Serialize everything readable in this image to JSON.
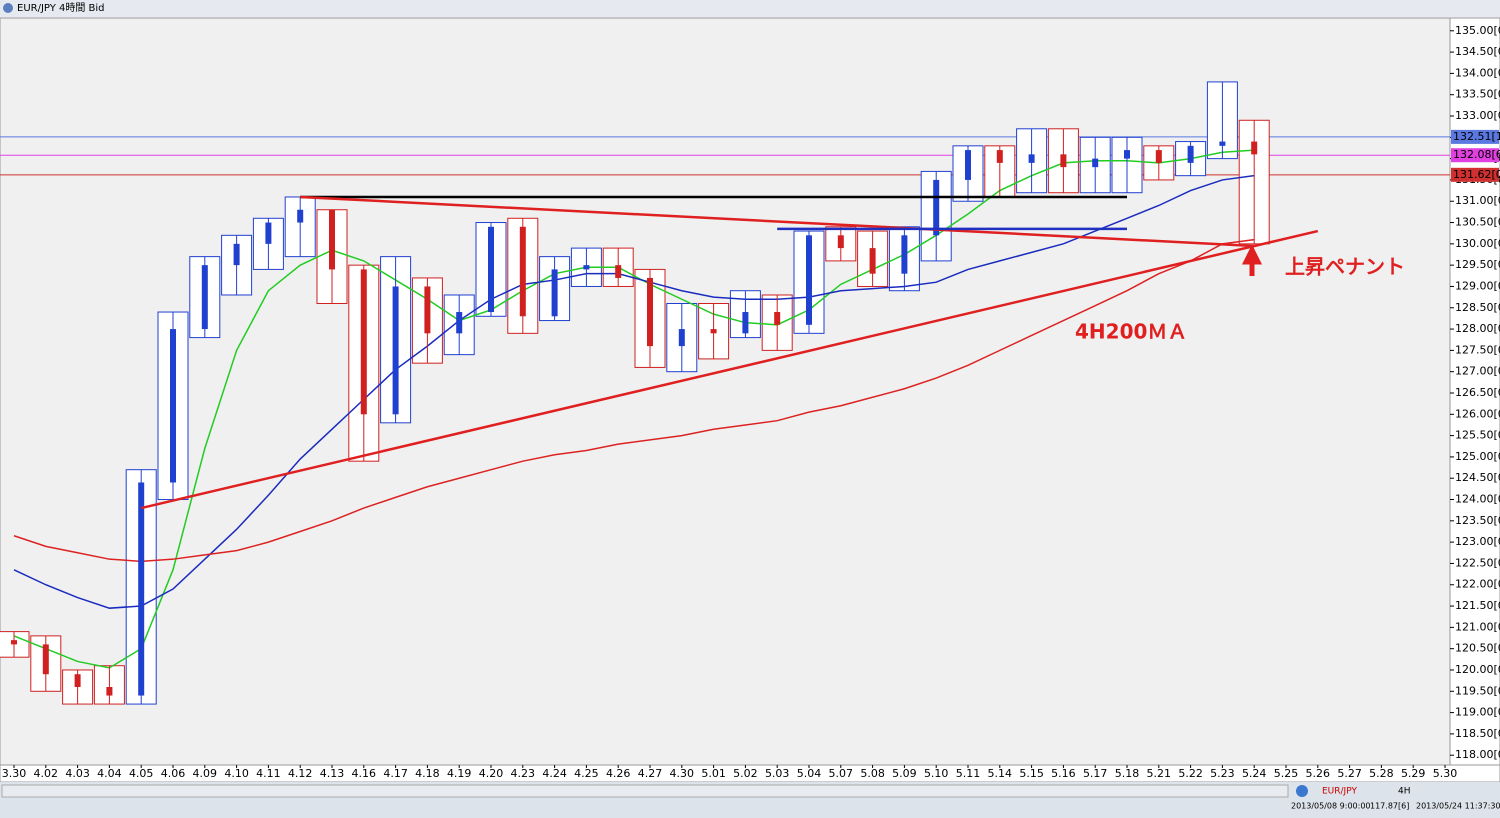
{
  "window_title": "EUR/JPY 4時間 Bid",
  "chart_data": {
    "type": "candlestick",
    "categories": [
      "3.30",
      "4.02",
      "4.03",
      "4.04",
      "4.05",
      "4.06",
      "4.09",
      "4.10",
      "4.11",
      "4.12",
      "4.13",
      "4.16",
      "4.17",
      "4.18",
      "4.19",
      "4.20",
      "4.23",
      "4.24",
      "4.25",
      "4.26",
      "4.27",
      "4.30",
      "5.01",
      "5.02",
      "5.03",
      "5.04",
      "5.07",
      "5.08",
      "5.09",
      "5.10",
      "5.11",
      "5.14",
      "5.15",
      "5.16",
      "5.17",
      "5.18",
      "5.21",
      "5.22",
      "5.23",
      "5.24",
      "5.25",
      "5.26",
      "5.27",
      "5.28",
      "5.29",
      "5.30"
    ],
    "open": [
      120.7,
      120.6,
      119.9,
      119.6,
      119.4,
      124.4,
      128.0,
      129.5,
      130.0,
      130.5,
      130.8,
      129.4,
      126.0,
      129.0,
      127.9,
      128.4,
      130.4,
      128.3,
      129.4,
      129.5,
      129.2,
      127.6,
      128.0,
      127.9,
      128.4,
      128.1,
      130.2,
      129.9,
      129.3,
      130.2,
      131.5,
      132.2,
      131.9,
      132.1,
      131.8,
      132.0,
      132.2,
      131.9,
      132.3,
      132.4,
      null,
      null,
      null,
      null,
      null,
      null
    ],
    "high": [
      120.9,
      120.8,
      120.0,
      120.1,
      124.7,
      128.4,
      129.7,
      130.2,
      130.6,
      131.1,
      130.8,
      129.5,
      129.7,
      129.2,
      128.8,
      130.5,
      130.6,
      129.7,
      129.9,
      129.9,
      129.4,
      128.6,
      128.6,
      128.9,
      128.8,
      130.3,
      130.4,
      130.3,
      130.4,
      131.7,
      132.3,
      132.3,
      132.7,
      132.7,
      132.5,
      132.5,
      132.3,
      132.4,
      133.8,
      132.9,
      null,
      null,
      null,
      null,
      null,
      null
    ],
    "low": [
      120.3,
      119.5,
      119.2,
      119.2,
      119.2,
      124.0,
      127.8,
      128.8,
      129.4,
      129.7,
      128.6,
      124.9,
      125.8,
      127.2,
      127.4,
      128.3,
      127.9,
      128.2,
      129.0,
      129.0,
      127.1,
      127.0,
      127.3,
      127.8,
      127.5,
      127.9,
      129.6,
      129.0,
      128.9,
      129.6,
      131.0,
      131.1,
      131.2,
      131.2,
      131.2,
      131.2,
      131.5,
      131.6,
      132.0,
      130.0,
      null,
      null,
      null,
      null,
      null,
      null
    ],
    "close": [
      120.6,
      119.9,
      119.6,
      119.4,
      124.4,
      128.0,
      129.5,
      130.0,
      130.5,
      130.8,
      129.4,
      126.0,
      129.0,
      127.9,
      128.4,
      130.4,
      128.3,
      129.4,
      129.5,
      129.2,
      127.6,
      128.0,
      127.9,
      128.4,
      128.1,
      130.2,
      129.9,
      129.3,
      130.2,
      131.5,
      132.2,
      131.9,
      132.1,
      131.8,
      132.0,
      132.2,
      131.9,
      132.3,
      132.4,
      132.1,
      null,
      null,
      null,
      null,
      null,
      null
    ],
    "up_color": "#2040d0",
    "down_color": "#d02020",
    "series": [
      {
        "color": "#22cc22",
        "values": [
          120.8,
          120.5,
          120.2,
          120.05,
          120.5,
          122.35,
          125.2,
          127.5,
          128.9,
          129.5,
          129.85,
          129.6,
          129.15,
          128.7,
          128.2,
          128.45,
          128.9,
          129.3,
          129.45,
          129.45,
          129.05,
          128.7,
          128.35,
          128.15,
          128.1,
          128.45,
          129.05,
          129.4,
          129.75,
          130.2,
          130.7,
          131.25,
          131.6,
          131.9,
          131.95,
          131.95,
          131.9,
          132.0,
          132.15,
          132.2,
          null,
          null,
          null,
          null,
          null,
          null
        ]
      },
      {
        "color": "#1a2bbf",
        "values": [
          122.35,
          122.0,
          121.7,
          121.45,
          121.5,
          121.9,
          122.6,
          123.3,
          124.1,
          124.95,
          125.65,
          126.35,
          127.05,
          127.6,
          128.2,
          128.7,
          129.05,
          129.15,
          129.3,
          129.3,
          129.1,
          128.9,
          128.75,
          128.7,
          128.7,
          128.75,
          128.9,
          128.95,
          129.0,
          129.1,
          129.4,
          129.6,
          129.8,
          130.0,
          130.3,
          130.6,
          130.9,
          131.25,
          131.5,
          131.6,
          null,
          null,
          null,
          null,
          null,
          null
        ]
      },
      {
        "color": "#dd2222",
        "values": [
          123.15,
          122.9,
          122.75,
          122.6,
          122.55,
          122.6,
          122.7,
          122.8,
          123.0,
          123.25,
          123.5,
          123.8,
          124.05,
          124.3,
          124.5,
          124.7,
          124.9,
          125.05,
          125.15,
          125.3,
          125.4,
          125.5,
          125.65,
          125.75,
          125.85,
          126.05,
          126.2,
          126.4,
          126.6,
          126.85,
          127.15,
          127.5,
          127.85,
          128.2,
          128.55,
          128.9,
          129.3,
          129.6,
          130.0,
          130.1,
          null,
          null,
          null,
          null,
          null,
          null
        ]
      }
    ],
    "trendlines": [
      {
        "color": "#000000",
        "x": [
          "4.12",
          "5.18"
        ],
        "values": [
          131.1,
          131.1
        ]
      },
      {
        "color": "#e02020",
        "x": [
          "4.12",
          "5.24"
        ],
        "values": [
          131.1,
          129.95
        ]
      },
      {
        "color": "#e02020",
        "x": [
          "4.05",
          "5.26"
        ],
        "values": [
          123.8,
          130.3
        ]
      },
      {
        "color": "#2030c0",
        "x": [
          "5.03",
          "5.18"
        ],
        "values": [
          130.35,
          130.35
        ]
      }
    ],
    "price_lines": [
      {
        "color": "#5a78e0",
        "tick": {
          "value": 132.51,
          "label": "132.51[1"
        }
      },
      {
        "color": "#e040e0",
        "tick": {
          "value": 132.08,
          "label": "132.08[6"
        }
      },
      {
        "color": "#d03030",
        "tick": {
          "value": 131.62,
          "label": "131.62[0"
        }
      }
    ],
    "annotations": [
      "上昇ペナント",
      "4H200ＭＡ"
    ],
    "ylim": [
      117.77,
      135.3
    ],
    "yticks": [
      {
        "value": 118,
        "label": "118.00[0"
      },
      {
        "value": 118.5,
        "label": "118.50[0"
      },
      {
        "value": 119,
        "label": "119.00[0"
      },
      {
        "value": 119.5,
        "label": "119.50[0"
      },
      {
        "value": 120,
        "label": "120.00[0"
      },
      {
        "value": 120.5,
        "label": "120.50[0"
      },
      {
        "value": 121,
        "label": "121.00[0"
      },
      {
        "value": 121.5,
        "label": "121.50[0"
      },
      {
        "value": 122,
        "label": "122.00[0"
      },
      {
        "value": 122.5,
        "label": "122.50[0"
      },
      {
        "value": 123,
        "label": "123.00[0"
      },
      {
        "value": 123.5,
        "label": "123.50[0"
      },
      {
        "value": 124,
        "label": "124.00[0"
      },
      {
        "value": 124.5,
        "label": "124.50[0"
      },
      {
        "value": 125,
        "label": "125.00[0"
      },
      {
        "value": 125.5,
        "label": "125.50[0"
      },
      {
        "value": 126,
        "label": "126.00[0"
      },
      {
        "value": 126.5,
        "label": "126.50[0"
      },
      {
        "value": 127,
        "label": "127.00[0"
      },
      {
        "value": 127.5,
        "label": "127.50[0"
      },
      {
        "value": 128,
        "label": "128.00[0"
      },
      {
        "value": 128.5,
        "label": "128.50[0"
      },
      {
        "value": 129,
        "label": "129.00[0"
      },
      {
        "value": 129.5,
        "label": "129.50[0"
      },
      {
        "value": 130,
        "label": "130.00[0"
      },
      {
        "value": 130.5,
        "label": "130.50[0"
      },
      {
        "value": 131,
        "label": "131.00[0"
      },
      {
        "value": 131.5,
        "label": "131.50[0"
      },
      {
        "value": 132,
        "label": "132.00[0"
      },
      {
        "value": 132.5,
        "label": "132.50[0"
      },
      {
        "value": 133,
        "label": "133.00[0"
      },
      {
        "value": 133.5,
        "label": "133.50[0"
      },
      {
        "value": 134,
        "label": "134.00[0"
      },
      {
        "value": 134.5,
        "label": "134.50[0"
      },
      {
        "value": 135,
        "label": "135.00[0"
      }
    ]
  },
  "status_bar": {
    "symbol": "EUR/JPY",
    "timeframe": "4H",
    "start": "2013/05/08 9:00:00",
    "price": "117.87[6]",
    "end": "2013/05/24 11:37:30"
  }
}
